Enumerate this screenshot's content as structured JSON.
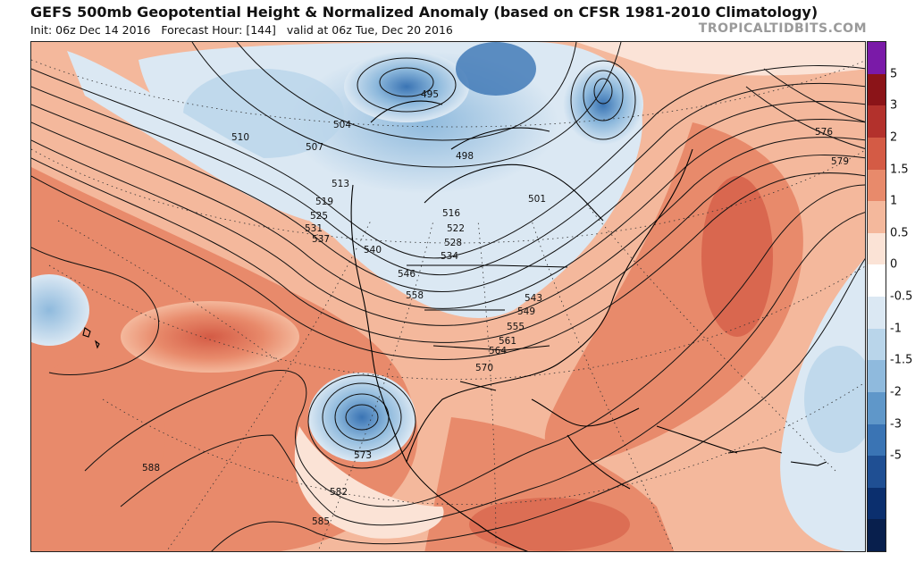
{
  "header": {
    "title": "GEFS 500mb Geopotential Height & Normalized Anomaly (based on CFSR 1981-2010 Climatology)",
    "subtitle": "Init: 06z Dec 14 2016   Forecast Hour: [144]   valid at 06z Tue, Dec 20 2016",
    "watermark": "TROPICALTIDBITS.COM"
  },
  "colorbar": {
    "labels": [
      "5",
      "3",
      "2",
      "1.5",
      "1",
      "0.5",
      "0",
      "-0.5",
      "-1",
      "-1.5",
      "-2",
      "-3",
      "-5"
    ],
    "colors": [
      "#7a1aa8",
      "#8b1418",
      "#b3312c",
      "#d45b45",
      "#e88a6b",
      "#f4b89c",
      "#fbe3d6",
      "#ffffff",
      "#dbe8f3",
      "#b9d5ea",
      "#8fbadd",
      "#5f97c9",
      "#3a74b4",
      "#1f4f93",
      "#0b2f6e",
      "#081f4d"
    ]
  },
  "map": {
    "contour_labels": [
      "495",
      "498",
      "501",
      "504",
      "507",
      "510",
      "513",
      "516",
      "519",
      "522",
      "525",
      "528",
      "531",
      "534",
      "537",
      "540",
      "543",
      "546",
      "549",
      "555",
      "558",
      "561",
      "564",
      "570",
      "573",
      "576",
      "579",
      "582",
      "585",
      "588"
    ]
  }
}
